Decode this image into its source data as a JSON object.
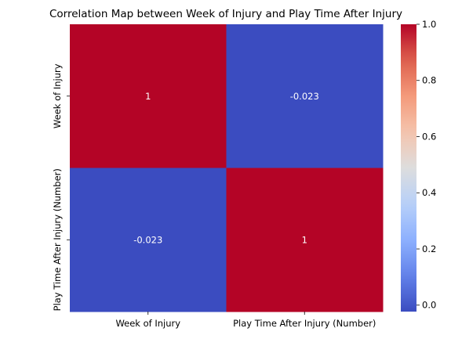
{
  "chart_data": {
    "type": "heatmap",
    "title": "Correlation Map between Week of Injury and Play Time After Injury",
    "x_categories": [
      "Week of Injury",
      "Play Time After Injury (Number)"
    ],
    "y_categories": [
      "Week of Injury",
      "Play Time After Injury (Number)"
    ],
    "values": [
      [
        1,
        -0.023
      ],
      [
        -0.023,
        1
      ]
    ],
    "cell_labels": [
      [
        "1",
        "-0.023"
      ],
      [
        "-0.023",
        "1"
      ]
    ],
    "colormap": "coolwarm",
    "vmin": -0.023,
    "vmax": 1,
    "colorbar_ticks": [
      0.0,
      0.2,
      0.4,
      0.6,
      0.8,
      1.0
    ],
    "colorbar_tick_labels": [
      "0.0",
      "0.2",
      "0.4",
      "0.6",
      "0.8",
      "1.0"
    ],
    "colors": {
      "low": "#3b4cc0",
      "mid": "#dddddd",
      "high": "#b40426",
      "cell_text": "#ffffff"
    }
  }
}
